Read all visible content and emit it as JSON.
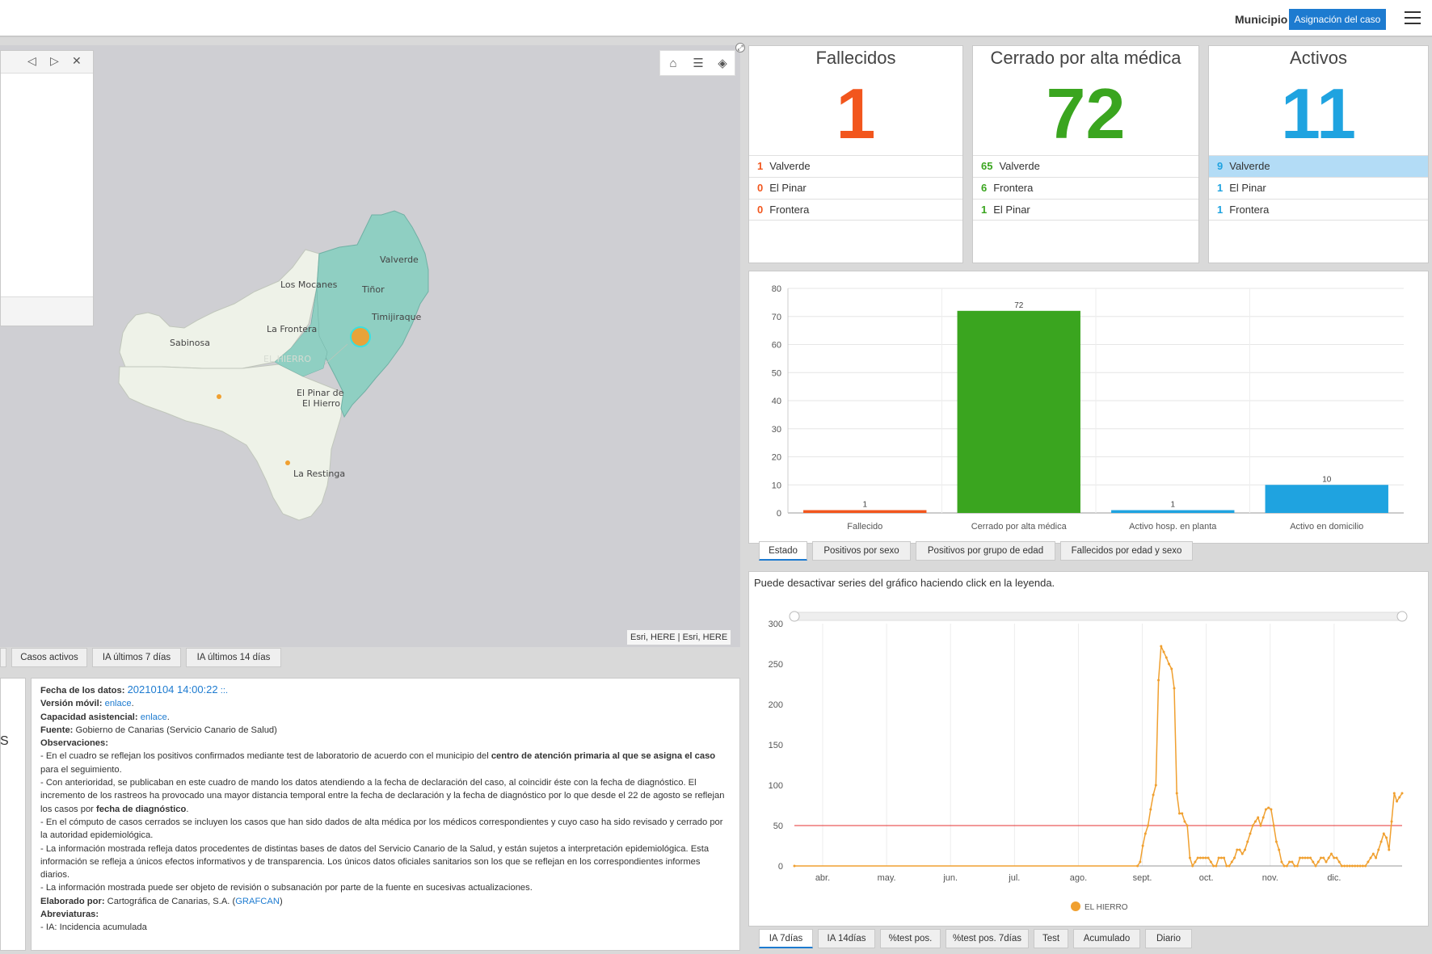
{
  "header": {
    "filter_label": "Municipio",
    "button_label": "Asignación del caso",
    "menu_icon": "hamburger-menu-icon"
  },
  "map": {
    "attribution": "Esri, HERE | Esri, HERE",
    "tools": [
      "home-icon",
      "legend-list-icon",
      "layers-icon"
    ],
    "popup_nav": [
      "◁",
      "▷",
      "✕"
    ],
    "places": [
      {
        "name": "Valverde"
      },
      {
        "name": "Los Mocanes"
      },
      {
        "name": "Tiñor"
      },
      {
        "name": "Timijiraque"
      },
      {
        "name": "La Frontera"
      },
      {
        "name": "Sabinosa"
      },
      {
        "name": "EL HIERRO"
      },
      {
        "name": "El Pinar de"
      },
      {
        "name": "El Hierro"
      },
      {
        "name": "La Restinga"
      }
    ]
  },
  "map_tabs": [
    "Casos activos",
    "IA últimos 7 días",
    "IA últimos 14 días"
  ],
  "info": {
    "fecha_label": "Fecha de los datos:",
    "fecha_value": "20210104 14:00:22",
    "fecha_suffix": "::.",
    "movil_label": "Versión móvil:",
    "movil_link": "enlace",
    "capacidad_label": "Capacidad asistencial:",
    "capacidad_link": "enlace",
    "fuente_label": "Fuente:",
    "fuente_value": "Gobierno de Canarias (Servicio Canario de Salud)",
    "obs_label": "Observaciones:",
    "obs1_a": "- En el cuadro se reflejan los positivos confirmados mediante test de laboratorio de acuerdo con el municipio del",
    "obs1_b": "centro de atención primaria al que se asigna el caso",
    "obs1_c": "para el seguimiento.",
    "obs2_a": "- Con anterioridad, se publicaban en este cuadro de mando los datos atendiendo a la fecha de declaración del caso, al coincidir éste con la fecha de diagnóstico. El incremento de los rastreos ha provocado una mayor distancia temporal entre la fecha de declaración y la fecha de diagnóstico por lo que desde el 22 de agosto se reflejan los casos por",
    "obs2_b": "fecha de diagnóstico",
    "obs3": "- En el cómputo de casos cerrados se incluyen los casos que han sido dados de alta médica por los médicos correspondientes y cuyo caso ha sido revisado y cerrado por la autoridad epidemiológica.",
    "obs4": "- La información mostrada refleja datos procedentes de distintas bases de datos del Servicio Canario de la Salud, y están sujetos a interpretación epidemiológica. Esta información se refleja a únicos efectos informativos y de transparencia. Los únicos datos oficiales sanitarios son los que se reflejan en los correspondientes informes diarios.",
    "obs5": "- La información mostrada puede ser objeto de revisión o subsanación por parte de la fuente en sucesivas actualizaciones.",
    "elaborado_label": "Elaborado por:",
    "elaborado_value": "Cartográfica de Canarias, S.A. (",
    "elaborado_link": "GRAFCAN",
    "elaborado_close": ")",
    "abrev_label": "Abreviaturas:",
    "abrev1": "- IA: Incidencia acumulada",
    "left_stub": "S"
  },
  "cards": [
    {
      "title": "Fallecidos",
      "value": "1",
      "color": "#f2561d",
      "rows": [
        {
          "n": "1",
          "name": "Valverde"
        },
        {
          "n": "0",
          "name": "El Pinar"
        },
        {
          "n": "0",
          "name": "Frontera"
        }
      ]
    },
    {
      "title": "Cerrado por alta médica",
      "value": "72",
      "color": "#3aa51f",
      "rows": [
        {
          "n": "65",
          "name": "Valverde"
        },
        {
          "n": "6",
          "name": "Frontera"
        },
        {
          "n": "1",
          "name": "El Pinar"
        }
      ]
    },
    {
      "title": "Activos",
      "value": "11",
      "color": "#1fa3e0",
      "rows": [
        {
          "n": "9",
          "name": "Valverde"
        },
        {
          "n": "1",
          "name": "El Pinar"
        },
        {
          "n": "1",
          "name": "Frontera"
        }
      ]
    }
  ],
  "bar_tabs": [
    "Estado",
    "Positivos por sexo",
    "Positivos por grupo de edad",
    "Fallecidos por edad y sexo"
  ],
  "line_hint": "Puede desactivar series del gráfico haciendo click en la leyenda.",
  "line_tabs": [
    "IA 7días",
    "IA 14días",
    "%test pos.",
    "%test pos. 7días",
    "Test",
    "Acumulado",
    "Diario"
  ],
  "chart_data": [
    {
      "type": "bar",
      "categories": [
        "Fallecido",
        "Cerrado por alta médica",
        "Activo hosp. en planta",
        "Activo en domicilio"
      ],
      "values": [
        1,
        72,
        1,
        10
      ],
      "colors": [
        "#f2561d",
        "#3aa51f",
        "#1fa3e0",
        "#1fa3e0"
      ],
      "ylim": [
        0,
        80
      ],
      "yticks": [
        0,
        10,
        20,
        30,
        40,
        50,
        60,
        70,
        80
      ],
      "grid": true
    },
    {
      "type": "line",
      "series": [
        {
          "name": "EL HIERRO",
          "color": "#f0a030"
        }
      ],
      "x_labels": [
        "abr.",
        "may.",
        "jun.",
        "jul.",
        "ago.",
        "sept.",
        "oct.",
        "nov.",
        "dic."
      ],
      "ylim": [
        0,
        300
      ],
      "yticks": [
        0,
        50,
        100,
        150,
        200,
        250,
        300
      ],
      "threshold": 50,
      "threshold_color": "#e53030",
      "points": [
        [
          0,
          0
        ],
        [
          131,
          0
        ],
        [
          132,
          5
        ],
        [
          133,
          25
        ],
        [
          134,
          40
        ],
        [
          135,
          50
        ],
        [
          136,
          70
        ],
        [
          137,
          88
        ],
        [
          138,
          100
        ],
        [
          139,
          230
        ],
        [
          140,
          272
        ],
        [
          141,
          265
        ],
        [
          142,
          258
        ],
        [
          143,
          250
        ],
        [
          144,
          244
        ],
        [
          145,
          220
        ],
        [
          146,
          90
        ],
        [
          147,
          65
        ],
        [
          148,
          65
        ],
        [
          149,
          55
        ],
        [
          150,
          50
        ],
        [
          151,
          10
        ],
        [
          152,
          0
        ],
        [
          153,
          5
        ],
        [
          154,
          10
        ],
        [
          155,
          10
        ],
        [
          156,
          10
        ],
        [
          157,
          10
        ],
        [
          158,
          10
        ],
        [
          159,
          5
        ],
        [
          160,
          0
        ],
        [
          161,
          0
        ],
        [
          162,
          10
        ],
        [
          163,
          10
        ],
        [
          164,
          10
        ],
        [
          165,
          0
        ],
        [
          166,
          0
        ],
        [
          167,
          5
        ],
        [
          168,
          10
        ],
        [
          169,
          20
        ],
        [
          170,
          20
        ],
        [
          171,
          15
        ],
        [
          172,
          20
        ],
        [
          173,
          30
        ],
        [
          174,
          40
        ],
        [
          175,
          50
        ],
        [
          176,
          55
        ],
        [
          177,
          60
        ],
        [
          178,
          50
        ],
        [
          179,
          60
        ],
        [
          180,
          70
        ],
        [
          181,
          72
        ],
        [
          182,
          70
        ],
        [
          183,
          50
        ],
        [
          184,
          30
        ],
        [
          185,
          20
        ],
        [
          186,
          5
        ],
        [
          187,
          0
        ],
        [
          188,
          0
        ],
        [
          189,
          5
        ],
        [
          190,
          5
        ],
        [
          191,
          0
        ],
        [
          192,
          0
        ],
        [
          193,
          10
        ],
        [
          194,
          10
        ],
        [
          195,
          10
        ],
        [
          196,
          10
        ],
        [
          197,
          10
        ],
        [
          198,
          5
        ],
        [
          199,
          0
        ],
        [
          200,
          5
        ],
        [
          201,
          10
        ],
        [
          202,
          10
        ],
        [
          203,
          5
        ],
        [
          204,
          10
        ],
        [
          205,
          15
        ],
        [
          206,
          10
        ],
        [
          207,
          10
        ],
        [
          208,
          5
        ],
        [
          209,
          0
        ],
        [
          210,
          0
        ],
        [
          211,
          0
        ],
        [
          212,
          0
        ],
        [
          213,
          0
        ],
        [
          214,
          0
        ],
        [
          215,
          0
        ],
        [
          216,
          0
        ],
        [
          217,
          0
        ],
        [
          218,
          0
        ],
        [
          219,
          5
        ],
        [
          220,
          10
        ],
        [
          221,
          15
        ],
        [
          222,
          10
        ],
        [
          223,
          20
        ],
        [
          224,
          30
        ],
        [
          225,
          40
        ],
        [
          226,
          35
        ],
        [
          227,
          20
        ],
        [
          228,
          55
        ],
        [
          229,
          90
        ],
        [
          230,
          80
        ],
        [
          231,
          85
        ],
        [
          232,
          90
        ]
      ],
      "x_start_index": 0,
      "x_end_index": 232
    }
  ]
}
